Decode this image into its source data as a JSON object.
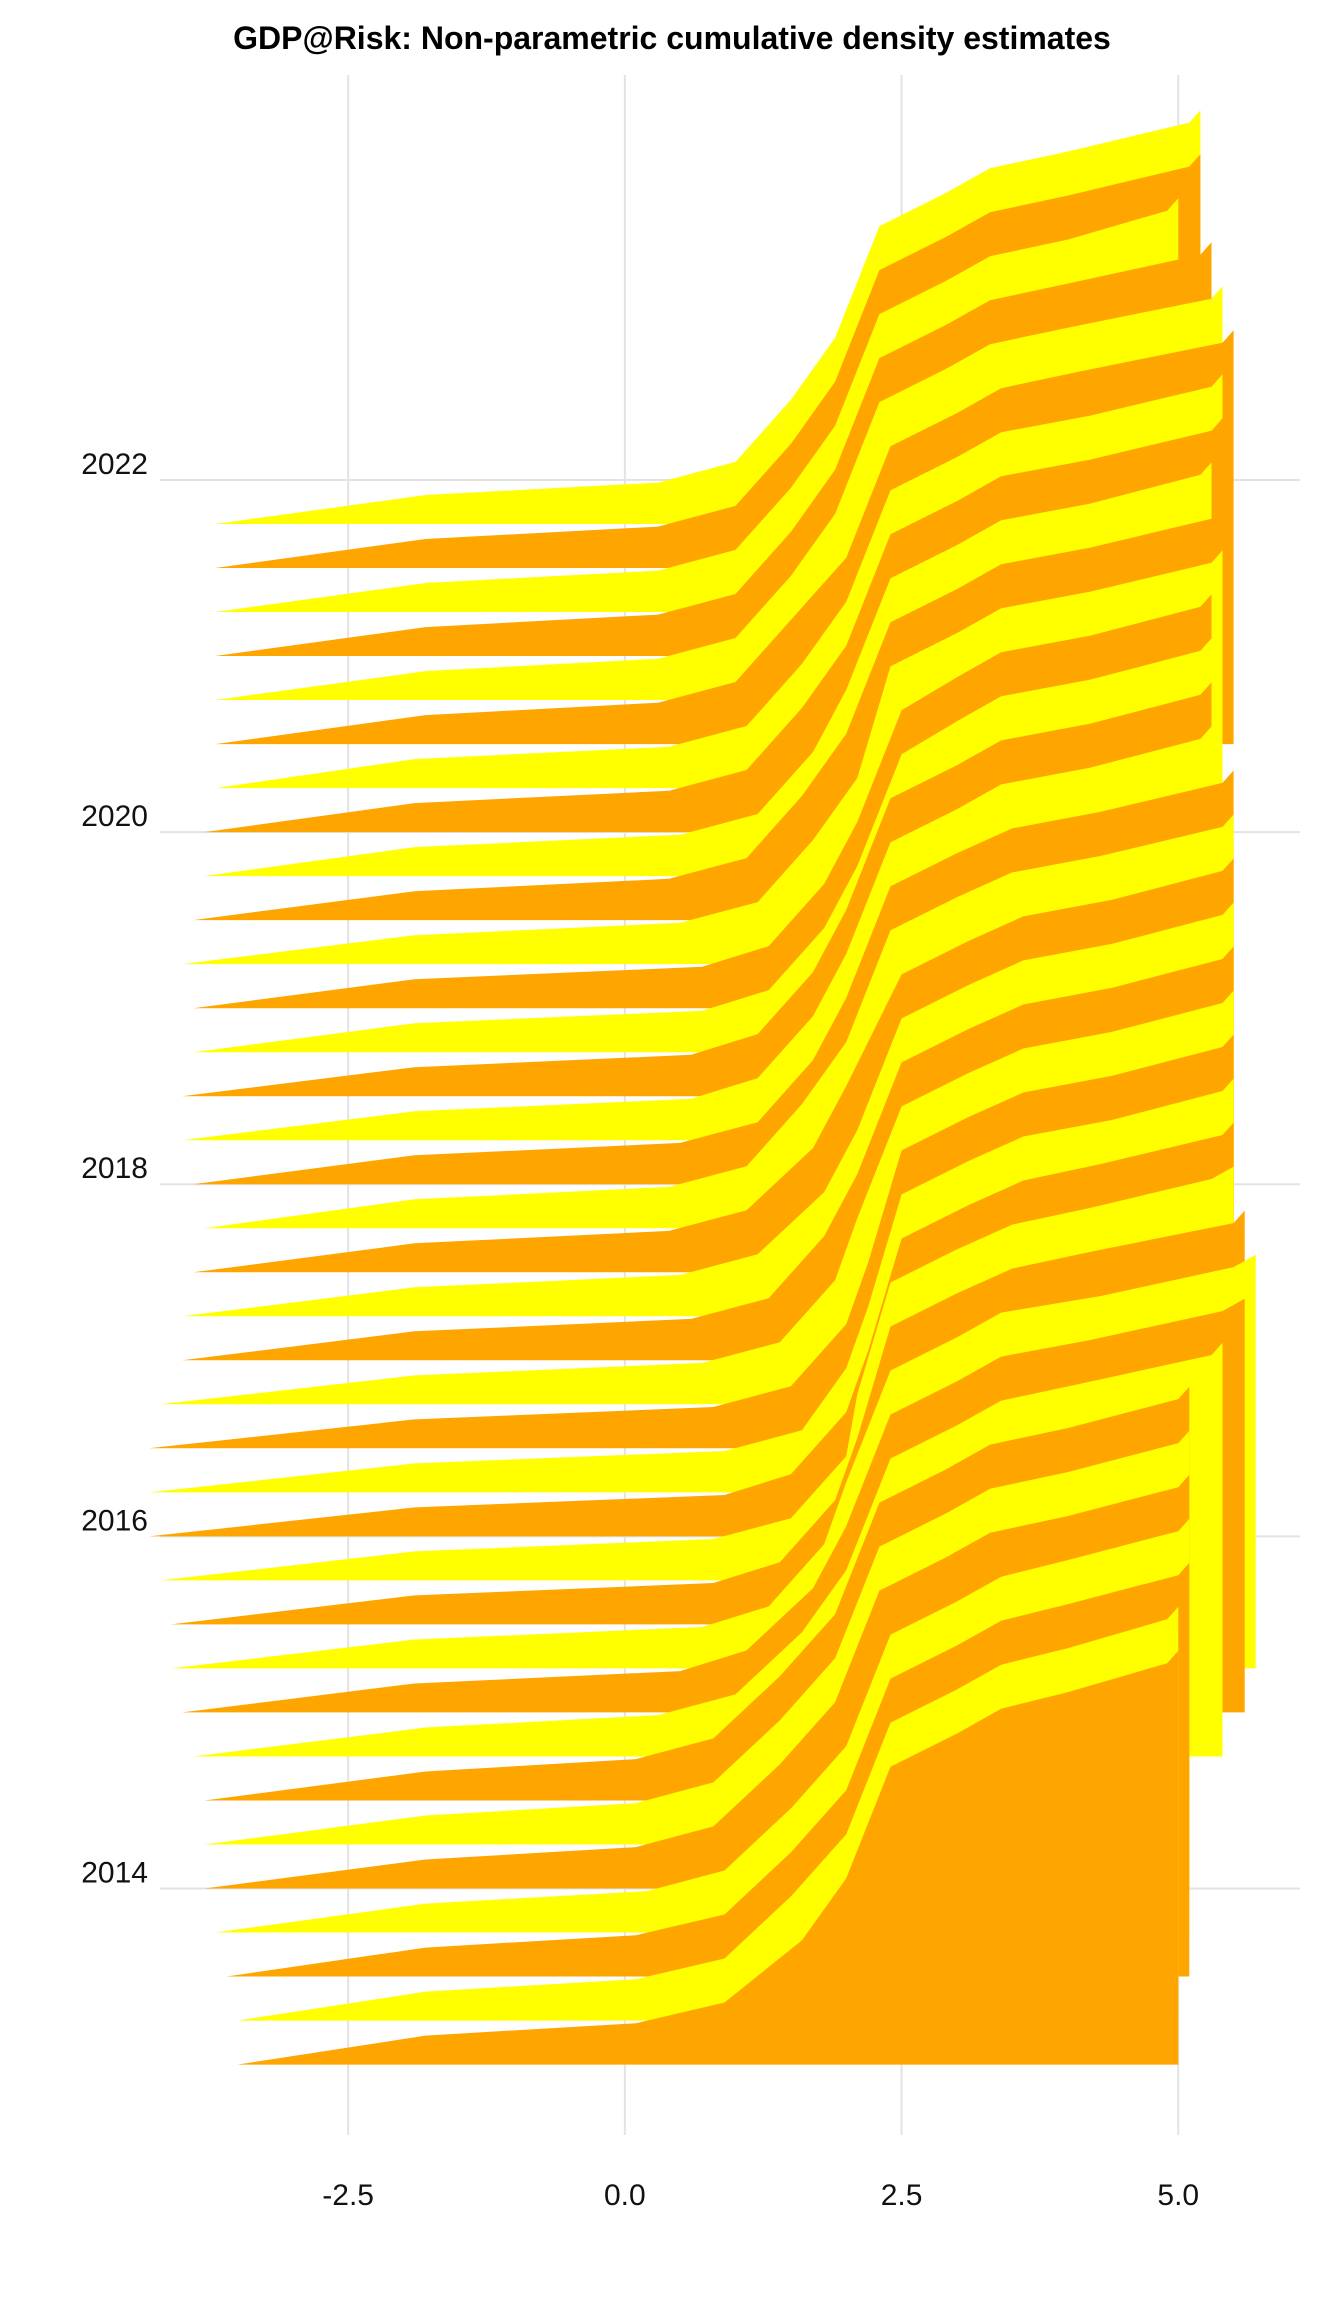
{
  "chart_data": {
    "type": "area",
    "title": "GDP@Risk: Non-parametric cumulative density estimates",
    "xlabel": "",
    "ylabel": "",
    "xlim": [
      -4.2,
      6.1
    ],
    "ylim": [
      2012.6,
      2024.3
    ],
    "x_ticks": [
      -2.5,
      0.0,
      2.5,
      5.0
    ],
    "x_tick_labels": [
      "-2.5",
      "0.0",
      "2.5",
      "5.0"
    ],
    "y_ticks": [
      2014,
      2016,
      2018,
      2020,
      2022
    ],
    "y_tick_labels": [
      "2014",
      "2016",
      "2018",
      "2020",
      "2022"
    ],
    "grid": true,
    "legend": "none",
    "colors": {
      "odd_quarter": "#FFA500",
      "even_quarter": "#FFFF00"
    },
    "ridge_height_in_years": 2.35,
    "series": [
      {
        "period": 2013.0,
        "fill": "#FFA500",
        "x": [
          -3.5,
          -1.8,
          0.1,
          0.9,
          1.6,
          2.0,
          2.4,
          3.0,
          3.4,
          4.0,
          4.9,
          5.0
        ],
        "y": [
          0,
          0.07,
          0.1,
          0.15,
          0.3,
          0.45,
          0.72,
          0.8,
          0.86,
          0.9,
          0.97,
          1
        ]
      },
      {
        "period": 2013.25,
        "fill": "#FFFF00",
        "x": [
          -3.5,
          -1.8,
          0.1,
          0.9,
          1.5,
          2.0,
          2.4,
          3.0,
          3.4,
          4.0,
          4.9,
          5.0
        ],
        "y": [
          0,
          0.07,
          0.1,
          0.15,
          0.3,
          0.45,
          0.72,
          0.8,
          0.86,
          0.9,
          0.97,
          1
        ]
      },
      {
        "period": 2013.5,
        "fill": "#FFA500",
        "x": [
          -3.6,
          -1.8,
          0.1,
          0.9,
          1.5,
          2.0,
          2.4,
          3.0,
          3.4,
          4.0,
          5.0,
          5.1
        ],
        "y": [
          0,
          0.07,
          0.1,
          0.15,
          0.3,
          0.45,
          0.72,
          0.8,
          0.86,
          0.9,
          0.97,
          1
        ]
      },
      {
        "period": 2013.75,
        "fill": "#FFFF00",
        "x": [
          -3.7,
          -1.8,
          0.2,
          0.9,
          1.5,
          2.0,
          2.4,
          3.0,
          3.4,
          4.0,
          5.0,
          5.1
        ],
        "y": [
          0,
          0.07,
          0.1,
          0.15,
          0.3,
          0.45,
          0.72,
          0.8,
          0.86,
          0.9,
          0.97,
          1
        ]
      },
      {
        "period": 2014.0,
        "fill": "#FFA500",
        "x": [
          -3.8,
          -1.8,
          0.1,
          0.8,
          1.4,
          1.9,
          2.3,
          2.9,
          3.3,
          4.0,
          5.0,
          5.1
        ],
        "y": [
          0,
          0.07,
          0.1,
          0.15,
          0.3,
          0.45,
          0.72,
          0.8,
          0.86,
          0.9,
          0.97,
          1
        ]
      },
      {
        "period": 2014.25,
        "fill": "#FFFF00",
        "x": [
          -3.8,
          -1.8,
          0.1,
          0.8,
          1.4,
          1.9,
          2.3,
          2.9,
          3.3,
          4.0,
          5.0,
          5.1
        ],
        "y": [
          0,
          0.07,
          0.1,
          0.15,
          0.3,
          0.45,
          0.72,
          0.8,
          0.86,
          0.9,
          0.97,
          1
        ]
      },
      {
        "period": 2014.5,
        "fill": "#FFA500",
        "x": [
          -3.8,
          -1.8,
          0.1,
          0.8,
          1.4,
          1.9,
          2.3,
          2.9,
          3.3,
          4.0,
          5.0,
          5.1
        ],
        "y": [
          0,
          0.07,
          0.1,
          0.15,
          0.3,
          0.45,
          0.72,
          0.8,
          0.86,
          0.9,
          0.97,
          1
        ]
      },
      {
        "period": 2014.75,
        "fill": "#FFFF00",
        "x": [
          -3.9,
          -1.8,
          0.3,
          1.0,
          1.6,
          2.0,
          2.4,
          3.0,
          3.4,
          4.1,
          5.3,
          5.4
        ],
        "y": [
          0,
          0.07,
          0.1,
          0.15,
          0.3,
          0.45,
          0.72,
          0.8,
          0.86,
          0.9,
          0.97,
          1
        ]
      },
      {
        "period": 2015.0,
        "fill": "#FFA500",
        "x": [
          -4.0,
          -1.9,
          0.5,
          1.1,
          1.7,
          2.0,
          2.4,
          3.0,
          3.4,
          4.2,
          5.4,
          5.6
        ],
        "y": [
          0,
          0.07,
          0.1,
          0.15,
          0.3,
          0.45,
          0.72,
          0.8,
          0.86,
          0.9,
          0.97,
          1
        ]
      },
      {
        "period": 2015.25,
        "fill": "#FFFF00",
        "x": [
          -4.1,
          -1.9,
          0.7,
          1.3,
          1.8,
          2.0,
          2.4,
          3.0,
          3.4,
          4.3,
          5.5,
          5.7
        ],
        "y": [
          0,
          0.07,
          0.1,
          0.15,
          0.3,
          0.45,
          0.72,
          0.8,
          0.86,
          0.9,
          0.97,
          1
        ]
      },
      {
        "period": 2015.5,
        "fill": "#FFA500",
        "x": [
          -4.1,
          -1.9,
          0.8,
          1.4,
          1.9,
          2.1,
          2.4,
          3.0,
          3.5,
          4.2,
          5.5,
          5.6
        ],
        "y": [
          0,
          0.07,
          0.1,
          0.15,
          0.3,
          0.45,
          0.72,
          0.8,
          0.86,
          0.9,
          0.97,
          1
        ]
      },
      {
        "period": 2015.75,
        "fill": "#FFFF00",
        "x": [
          -4.2,
          -1.9,
          0.8,
          1.5,
          2.0,
          2.1,
          2.4,
          3.0,
          3.5,
          4.2,
          5.3,
          5.5
        ],
        "y": [
          0,
          0.07,
          0.1,
          0.15,
          0.3,
          0.45,
          0.72,
          0.8,
          0.86,
          0.9,
          0.97,
          1
        ]
      },
      {
        "period": 2016.0,
        "fill": "#FFA500",
        "x": [
          -4.3,
          -1.9,
          0.9,
          1.5,
          2.0,
          2.2,
          2.5,
          3.1,
          3.6,
          4.3,
          5.4,
          5.5
        ],
        "y": [
          0,
          0.07,
          0.1,
          0.15,
          0.3,
          0.45,
          0.72,
          0.8,
          0.86,
          0.9,
          0.97,
          1
        ]
      },
      {
        "period": 2016.25,
        "fill": "#FFFF00",
        "x": [
          -4.3,
          -1.9,
          0.9,
          1.6,
          2.0,
          2.2,
          2.5,
          3.1,
          3.6,
          4.4,
          5.4,
          5.5
        ],
        "y": [
          0,
          0.07,
          0.1,
          0.15,
          0.3,
          0.45,
          0.72,
          0.8,
          0.86,
          0.9,
          0.97,
          1
        ]
      },
      {
        "period": 2016.5,
        "fill": "#FFA500",
        "x": [
          -4.3,
          -1.9,
          0.8,
          1.5,
          2.0,
          2.2,
          2.5,
          3.1,
          3.6,
          4.4,
          5.4,
          5.5
        ],
        "y": [
          0,
          0.07,
          0.1,
          0.15,
          0.3,
          0.45,
          0.72,
          0.8,
          0.86,
          0.9,
          0.97,
          1
        ]
      },
      {
        "period": 2016.75,
        "fill": "#FFFF00",
        "x": [
          -4.2,
          -1.9,
          0.7,
          1.4,
          1.9,
          2.1,
          2.5,
          3.1,
          3.6,
          4.4,
          5.4,
          5.5
        ],
        "y": [
          0,
          0.07,
          0.1,
          0.15,
          0.3,
          0.45,
          0.72,
          0.8,
          0.86,
          0.9,
          0.97,
          1
        ]
      },
      {
        "period": 2017.0,
        "fill": "#FFA500",
        "x": [
          -4.0,
          -1.9,
          0.6,
          1.3,
          1.8,
          2.1,
          2.5,
          3.1,
          3.6,
          4.4,
          5.4,
          5.5
        ],
        "y": [
          0,
          0.07,
          0.1,
          0.15,
          0.3,
          0.45,
          0.72,
          0.8,
          0.86,
          0.9,
          0.97,
          1
        ]
      },
      {
        "period": 2017.25,
        "fill": "#FFFF00",
        "x": [
          -4.0,
          -1.9,
          0.5,
          1.2,
          1.8,
          2.1,
          2.5,
          3.1,
          3.6,
          4.4,
          5.4,
          5.5
        ],
        "y": [
          0,
          0.07,
          0.1,
          0.15,
          0.3,
          0.45,
          0.72,
          0.8,
          0.86,
          0.9,
          0.97,
          1
        ]
      },
      {
        "period": 2017.5,
        "fill": "#FFA500",
        "x": [
          -3.9,
          -1.9,
          0.4,
          1.1,
          1.7,
          2.0,
          2.5,
          3.1,
          3.6,
          4.4,
          5.4,
          5.5
        ],
        "y": [
          0,
          0.07,
          0.1,
          0.15,
          0.3,
          0.45,
          0.72,
          0.8,
          0.86,
          0.9,
          0.97,
          1
        ]
      },
      {
        "period": 2017.75,
        "fill": "#FFFF00",
        "x": [
          -3.8,
          -1.9,
          0.4,
          1.1,
          1.6,
          2.0,
          2.4,
          3.0,
          3.5,
          4.3,
          5.4,
          5.5
        ],
        "y": [
          0,
          0.07,
          0.1,
          0.15,
          0.3,
          0.45,
          0.72,
          0.8,
          0.86,
          0.9,
          0.97,
          1
        ]
      },
      {
        "period": 2018.0,
        "fill": "#FFA500",
        "x": [
          -3.9,
          -1.9,
          0.5,
          1.2,
          1.7,
          2.0,
          2.4,
          3.0,
          3.5,
          4.3,
          5.4,
          5.5
        ],
        "y": [
          0,
          0.07,
          0.1,
          0.15,
          0.3,
          0.45,
          0.72,
          0.8,
          0.86,
          0.9,
          0.97,
          1
        ]
      },
      {
        "period": 2018.25,
        "fill": "#FFFF00",
        "x": [
          -4.0,
          -1.9,
          0.6,
          1.2,
          1.7,
          2.0,
          2.4,
          3.0,
          3.4,
          4.2,
          5.2,
          5.3
        ],
        "y": [
          0,
          0.07,
          0.1,
          0.15,
          0.3,
          0.45,
          0.72,
          0.8,
          0.86,
          0.9,
          0.97,
          1
        ]
      },
      {
        "period": 2018.5,
        "fill": "#FFA500",
        "x": [
          -4.0,
          -1.9,
          0.6,
          1.2,
          1.7,
          2.0,
          2.4,
          3.0,
          3.4,
          4.2,
          5.2,
          5.3
        ],
        "y": [
          0,
          0.07,
          0.1,
          0.15,
          0.3,
          0.45,
          0.72,
          0.8,
          0.86,
          0.9,
          0.97,
          1
        ]
      },
      {
        "period": 2018.75,
        "fill": "#FFFF00",
        "x": [
          -3.9,
          -1.9,
          0.7,
          1.3,
          1.8,
          2.1,
          2.5,
          3.0,
          3.4,
          4.2,
          5.2,
          5.3
        ],
        "y": [
          0,
          0.07,
          0.1,
          0.15,
          0.3,
          0.45,
          0.72,
          0.8,
          0.86,
          0.9,
          0.97,
          1
        ]
      },
      {
        "period": 2019.0,
        "fill": "#FFA500",
        "x": [
          -3.9,
          -1.9,
          0.7,
          1.3,
          1.8,
          2.1,
          2.5,
          3.0,
          3.4,
          4.2,
          5.2,
          5.3
        ],
        "y": [
          0,
          0.07,
          0.1,
          0.15,
          0.3,
          0.45,
          0.72,
          0.8,
          0.86,
          0.9,
          0.97,
          1
        ]
      },
      {
        "period": 2019.25,
        "fill": "#FFFF00",
        "x": [
          -4.0,
          -1.9,
          0.5,
          1.2,
          1.7,
          2.1,
          2.4,
          3.0,
          3.4,
          4.2,
          5.3,
          5.4
        ],
        "y": [
          0,
          0.07,
          0.1,
          0.15,
          0.3,
          0.45,
          0.72,
          0.8,
          0.86,
          0.9,
          0.97,
          1
        ]
      },
      {
        "period": 2019.5,
        "fill": "#FFA500",
        "x": [
          -3.9,
          -1.9,
          0.4,
          1.1,
          1.6,
          2.0,
          2.4,
          3.0,
          3.4,
          4.2,
          5.3,
          5.4
        ],
        "y": [
          0,
          0.07,
          0.1,
          0.15,
          0.3,
          0.45,
          0.72,
          0.8,
          0.86,
          0.9,
          0.97,
          1
        ]
      },
      {
        "period": 2019.75,
        "fill": "#FFFF00",
        "x": [
          -3.8,
          -1.9,
          0.5,
          1.2,
          1.7,
          2.0,
          2.4,
          3.0,
          3.4,
          4.2,
          5.2,
          5.3
        ],
        "y": [
          0,
          0.07,
          0.1,
          0.15,
          0.3,
          0.45,
          0.72,
          0.8,
          0.86,
          0.9,
          0.97,
          1
        ]
      },
      {
        "period": 2020.0,
        "fill": "#FFA500",
        "x": [
          -3.8,
          -1.9,
          0.4,
          1.1,
          1.6,
          2.0,
          2.4,
          3.0,
          3.4,
          4.2,
          5.3,
          5.4
        ],
        "y": [
          0,
          0.07,
          0.1,
          0.15,
          0.3,
          0.45,
          0.72,
          0.8,
          0.86,
          0.9,
          0.97,
          1
        ]
      },
      {
        "period": 2020.25,
        "fill": "#FFFF00",
        "x": [
          -3.7,
          -1.9,
          0.4,
          1.1,
          1.6,
          2.0,
          2.4,
          3.0,
          3.4,
          4.2,
          5.3,
          5.4
        ],
        "y": [
          0,
          0.07,
          0.1,
          0.15,
          0.3,
          0.45,
          0.72,
          0.8,
          0.86,
          0.9,
          0.97,
          1
        ]
      },
      {
        "period": 2020.5,
        "fill": "#FFA500",
        "x": [
          -3.7,
          -1.8,
          0.3,
          1.0,
          1.5,
          2.0,
          2.4,
          3.0,
          3.4,
          4.1,
          5.4,
          5.5
        ],
        "y": [
          0,
          0.07,
          0.1,
          0.15,
          0.3,
          0.45,
          0.72,
          0.8,
          0.86,
          0.9,
          0.97,
          1
        ]
      },
      {
        "period": 2020.75,
        "fill": "#FFFF00",
        "x": [
          -3.7,
          -1.8,
          0.3,
          1.0,
          1.5,
          1.9,
          2.3,
          2.9,
          3.3,
          4.0,
          5.3,
          5.4
        ],
        "y": [
          0,
          0.07,
          0.1,
          0.15,
          0.3,
          0.45,
          0.72,
          0.8,
          0.86,
          0.9,
          0.97,
          1
        ]
      },
      {
        "period": 2021.0,
        "fill": "#FFA500",
        "x": [
          -3.7,
          -1.8,
          0.3,
          1.0,
          1.5,
          1.9,
          2.3,
          2.9,
          3.3,
          4.0,
          5.2,
          5.3
        ],
        "y": [
          0,
          0.07,
          0.1,
          0.15,
          0.3,
          0.45,
          0.72,
          0.8,
          0.86,
          0.9,
          0.97,
          1
        ]
      },
      {
        "period": 2021.25,
        "fill": "#FFFF00",
        "x": [
          -3.7,
          -1.8,
          0.3,
          1.0,
          1.5,
          1.9,
          2.3,
          2.9,
          3.3,
          4.0,
          4.9,
          5.0
        ],
        "y": [
          0,
          0.07,
          0.1,
          0.15,
          0.3,
          0.45,
          0.72,
          0.8,
          0.86,
          0.9,
          0.97,
          1
        ]
      },
      {
        "period": 2021.5,
        "fill": "#FFA500",
        "x": [
          -3.7,
          -1.8,
          0.3,
          1.0,
          1.5,
          1.9,
          2.3,
          2.9,
          3.3,
          4.0,
          5.1,
          5.2
        ],
        "y": [
          0,
          0.07,
          0.1,
          0.15,
          0.3,
          0.45,
          0.72,
          0.8,
          0.86,
          0.9,
          0.97,
          1
        ]
      },
      {
        "period": 2021.75,
        "fill": "#FFFF00",
        "x": [
          -3.7,
          -1.8,
          0.3,
          1.0,
          1.5,
          1.9,
          2.3,
          2.9,
          3.3,
          4.0,
          5.1,
          5.2
        ],
        "y": [
          0,
          0.07,
          0.1,
          0.15,
          0.3,
          0.45,
          0.72,
          0.8,
          0.86,
          0.9,
          0.97,
          1
        ]
      }
    ]
  }
}
